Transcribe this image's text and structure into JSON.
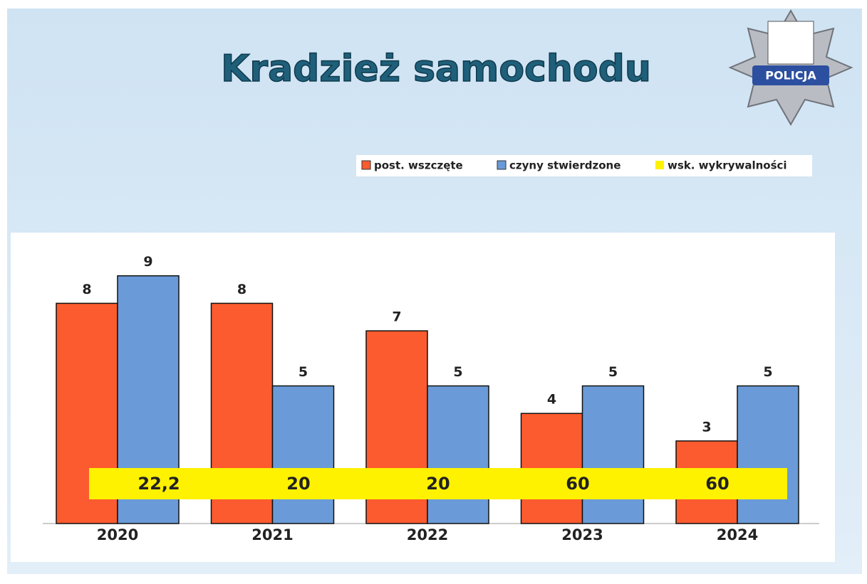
{
  "logo": {
    "text": "POLICJA"
  },
  "chart_data": {
    "type": "bar",
    "title": "Kradzież samochodu",
    "categories": [
      "2020",
      "2021",
      "2022",
      "2023",
      "2024"
    ],
    "series": [
      {
        "name": "post. wszczęte",
        "color": "#fb5b2e",
        "values": [
          8,
          8,
          7,
          4,
          3
        ]
      },
      {
        "name": "czyny stwierdzone",
        "color": "#6a9bd8",
        "values": [
          9,
          5,
          5,
          5,
          5
        ]
      },
      {
        "name": "wsk. wykrywalności",
        "color": "#fff200",
        "values": [
          22.2,
          20,
          20,
          60,
          60
        ],
        "value_labels": [
          "22,2",
          "20",
          "20",
          "60",
          "60"
        ]
      }
    ],
    "ylim": [
      0,
      10
    ]
  }
}
